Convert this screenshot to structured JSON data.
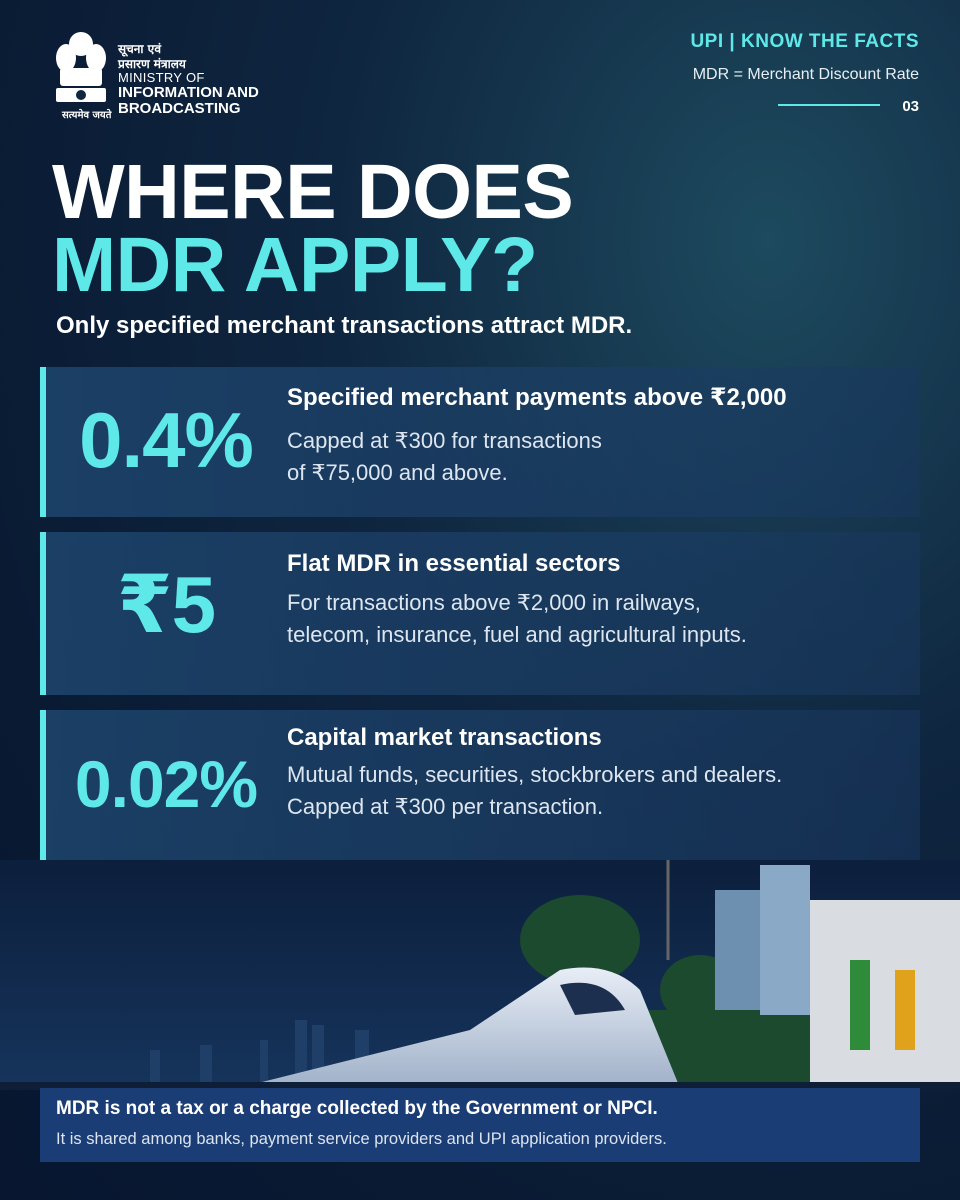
{
  "header": {
    "logo_hindi_line1": "सूचना एवं",
    "logo_hindi_line2": "प्रसारण मंत्रालय",
    "logo_english_line1": "MINISTRY OF",
    "logo_english_line2": "INFORMATION AND",
    "logo_english_line3": "BROADCASTING",
    "emblem_motto": "सत्यमेव जयते",
    "series": "UPI | KNOW THE FACTS",
    "definition": "MDR = Merchant Discount Rate",
    "page_number": "03"
  },
  "title": {
    "line1": "WHERE DOES",
    "line2": "MDR APPLY?"
  },
  "subtitle": "Only specified merchant transactions attract MDR.",
  "cards": [
    {
      "value": "0.4%",
      "heading": "Specified merchant payments above ₹2,000",
      "lines": [
        "Capped at ₹300 for transactions",
        "of ₹75,000 and above."
      ]
    },
    {
      "value": "₹5",
      "heading": "Flat MDR in essential sectors",
      "lines": [
        "For transactions above ₹2,000 in railways,",
        "telecom, insurance, fuel and agricultural inputs."
      ]
    },
    {
      "value": "0.02%",
      "heading": "Capital market transactions",
      "lines": [
        "Mutual funds, securities, stockbrokers and dealers.",
        "Capped at ₹300 per transaction."
      ]
    }
  ],
  "footer": {
    "line1": "MDR is not a tax or a charge collected by the Government or NPCI.",
    "line2": "It is shared among banks, payment service providers and UPI application providers."
  }
}
